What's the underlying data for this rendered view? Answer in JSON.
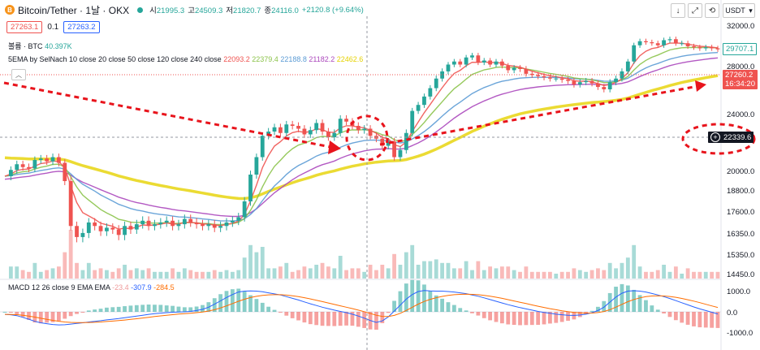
{
  "header": {
    "coin_glyph": "B",
    "title": "Bitcoin/Tether · 1날 · OKX",
    "ohlc": [
      {
        "label": "시",
        "value": "21995.3"
      },
      {
        "label": "고",
        "value": "24509.3"
      },
      {
        "label": "저",
        "value": "21820.7"
      },
      {
        "label": "종",
        "value": "24116.0"
      },
      {
        "label": "",
        "value": "+2120.8 (+9.64%)"
      }
    ]
  },
  "sell_price": "27263.1",
  "spread": "0.1",
  "buy_price": "27263.2",
  "volume": {
    "label": "볼륨 · BTC",
    "value": "40.397K"
  },
  "ema_legend": {
    "label": "5EMA by SelNach 10 close 20 close 50 close 120 close 240 close",
    "values": [
      {
        "value": "22093.2",
        "color": "#ef5350"
      },
      {
        "value": "22379.4",
        "color": "#8bc34a"
      },
      {
        "value": "22188.8",
        "color": "#5b9bd5"
      },
      {
        "value": "21182.2",
        "color": "#ab47bc"
      },
      {
        "value": "22462.6",
        "color": "#e6d200"
      }
    ]
  },
  "macd_legend": {
    "label": "MACD 12 26 close 9 EMA EMA",
    "values": [
      {
        "value": "-23.4",
        "color": "#ef9a9a"
      },
      {
        "value": "-307.9",
        "color": "#2962ff"
      },
      {
        "value": "-284.5",
        "color": "#ff6d00"
      }
    ]
  },
  "toolbar": {
    "down_icon": "↓",
    "expand_icon": "⤢",
    "refresh_icon": "⟲",
    "currency": "USDT",
    "currency_arrow": "▾"
  },
  "price_axis": [
    "32000.0",
    "28000.0",
    "24000.0",
    "20000.0",
    "18800.0",
    "17600.0",
    "16350.0",
    "15350.0",
    "14450.0"
  ],
  "macd_axis": [
    "1000.0",
    "0.0",
    "-1000.0"
  ],
  "price_tags": {
    "current": "29707.1",
    "mark_price": "27260.2",
    "countdown": "16:34:20",
    "crosshair": "22339.6",
    "crosshair_icon": "+"
  },
  "colors": {
    "up": "#26a69a",
    "down": "#ef5350",
    "annotation": "#e8141c",
    "ema5": "#ef5350",
    "ema10": "#8bc34a",
    "ema20": "#5b9bd5",
    "ema120": "#ab47bc",
    "ema240": "#e6d200"
  },
  "chart_data": {
    "type": "line",
    "title": "Bitcoin/Tether · 1날 · OKX",
    "y_price_ticks": [
      32000,
      28000,
      24000,
      20000,
      18800,
      17600,
      16350,
      15350,
      14450
    ],
    "series": [
      {
        "name": "close",
        "values": [
          19700,
          20100,
          20500,
          20300,
          20200,
          20800,
          20900,
          20700,
          21000,
          20600,
          19400,
          16800,
          16200,
          16400,
          17000,
          16800,
          16500,
          16700,
          16600,
          16300,
          16800,
          16600,
          16900,
          17100,
          16800,
          16900,
          17000,
          17100,
          16800,
          16900,
          17200,
          17000,
          16900,
          16800,
          16900,
          16700,
          16800,
          17000,
          17100,
          17300,
          18200,
          19800,
          21000,
          22500,
          22800,
          23100,
          22700,
          23300,
          23200,
          23000,
          22600,
          22900,
          23400,
          22800,
          22400,
          22700,
          23700,
          23500,
          23200,
          22900,
          23000,
          22500,
          22300,
          21800,
          22100,
          21000,
          21500,
          22700,
          24300,
          24800,
          25500,
          26200,
          27000,
          27600,
          28200,
          28500,
          28200,
          28900,
          29100,
          28400,
          28600,
          28200,
          28500,
          28100,
          27700,
          27900,
          27800,
          27400,
          27300,
          27200,
          27100,
          27000,
          27000,
          26900,
          26800,
          26500,
          26700,
          26800,
          26600,
          26300,
          26100,
          26700,
          27000,
          27600,
          28500,
          30100,
          30500,
          30400,
          30300,
          30100,
          30600,
          30700,
          30300,
          30300,
          30000,
          29900,
          29800,
          29900,
          29800,
          29700
        ]
      },
      {
        "name": "MACD",
        "values": [
          -120,
          -140,
          -180,
          -260,
          -350,
          -450,
          -520,
          -560,
          -600,
          -620,
          -610,
          -580,
          -550,
          -520,
          -480,
          -450,
          -420,
          -380,
          -350,
          -320,
          -280,
          -240,
          -200,
          -160,
          -120,
          -90,
          -60,
          -40,
          -20,
          -10,
          0,
          20,
          60,
          120,
          220,
          360,
          520,
          680,
          820,
          940,
          980,
          990,
          980,
          950,
          900,
          850,
          800,
          720,
          640,
          560,
          470,
          380,
          300,
          220,
          150,
          80,
          20,
          -40,
          -110,
          -200,
          -300,
          -410,
          -500,
          -430,
          -240,
          40,
          320,
          600,
          820,
          960,
          1010,
          990,
          980,
          980,
          960,
          940,
          900,
          860,
          800,
          740,
          660,
          580,
          500,
          420,
          340,
          270,
          200,
          140,
          80,
          20,
          -30,
          -70,
          -110,
          -140,
          -160,
          -170,
          -150,
          -110,
          -40,
          60,
          220,
          460,
          700,
          880,
          980,
          1000,
          980,
          940,
          870,
          800,
          720,
          630,
          530,
          430,
          330,
          230,
          140,
          60,
          -20,
          -100
        ]
      }
    ],
    "volume_ticks": [],
    "grid": false,
    "annotations": [
      "dashed downtrend arrow",
      "dashed uptrend arrow",
      "dashed circle at crossover",
      "dashed ellipse on price tag"
    ]
  }
}
